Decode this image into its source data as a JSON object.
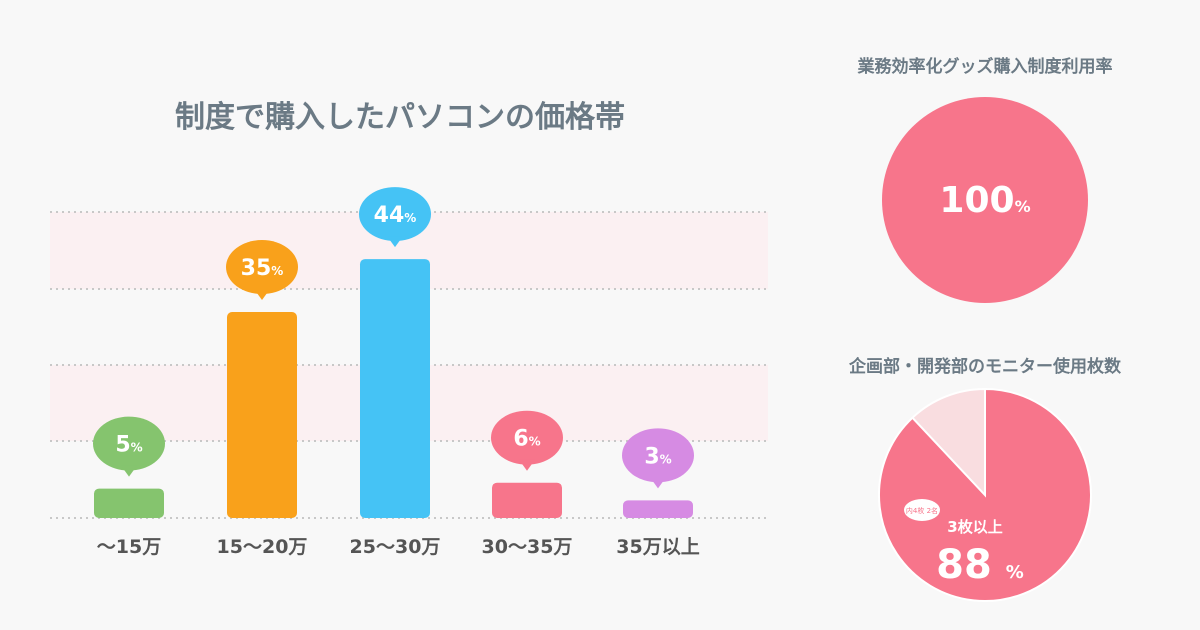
{
  "chart_data": [
    {
      "type": "bar",
      "title": "制度で購入したパソコンの価格帯",
      "categories": [
        "〜15万",
        "15〜20万",
        "25〜30万",
        "30〜35万",
        "35万以上"
      ],
      "values": [
        5,
        35,
        44,
        6,
        3
      ],
      "labels": [
        "5",
        "35",
        "44",
        "6",
        "3"
      ],
      "unit": "%",
      "colors": [
        "#85c46e",
        "#f9a11b",
        "#45c3f5",
        "#f7758b",
        "#d68be3"
      ],
      "ylim": [
        0,
        52
      ],
      "grid": true
    },
    {
      "type": "pie",
      "title": "業務効率化グッズ購入制度利用率",
      "values": [
        100
      ],
      "label": "100",
      "unit": "%",
      "color": "#f7758b"
    },
    {
      "type": "pie",
      "title": "企画部・開発部のモニター使用枚数",
      "values": [
        88,
        12
      ],
      "slice_labels": [
        "3枚以上"
      ],
      "main_value": "88",
      "unit": "%",
      "note": "内4枚 2名",
      "colors": [
        "#f7758b",
        "#f9dde0"
      ]
    }
  ]
}
